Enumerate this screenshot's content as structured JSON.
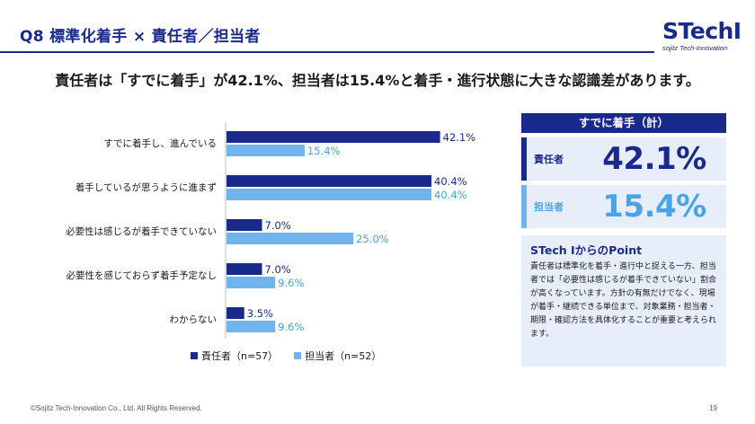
{
  "header": {
    "title": "Q8 標準化着手 × 責任者／担当者",
    "logo_main": "STechI",
    "logo_sub": "sojitz Tech-Innovation"
  },
  "headline": "責任者は「すでに着手」が42.1%、担当者は15.4%と着手・進行状態に大きな認識差があります。",
  "colors": {
    "primary": "#1a2a8c",
    "secondary": "#6fb4ec",
    "panel": "#e7eefa"
  },
  "chart_data": {
    "type": "bar",
    "orientation": "horizontal",
    "categories": [
      "すでに着手し、進んでいる",
      "着手しているが思うように進まず",
      "必要性は感じるが着手できていない",
      "必要性を感じておらず着手予定なし",
      "わからない"
    ],
    "series": [
      {
        "name": "責任者（n=57）",
        "values": [
          42.1,
          40.4,
          7.0,
          7.0,
          3.5
        ],
        "labels": [
          "42.1%",
          "40.4%",
          "7.0%",
          "7.0%",
          "3.5%"
        ]
      },
      {
        "name": "担当者（n=52）",
        "values": [
          15.4,
          40.4,
          25.0,
          9.6,
          9.6
        ],
        "labels": [
          "15.4%",
          "40.4%",
          "25.0%",
          "9.6%",
          "9.6%"
        ]
      }
    ],
    "xlim": [
      0,
      45
    ],
    "legend_position": "bottom",
    "grid": false
  },
  "legend": {
    "a": "責任者（n=57）",
    "b": "担当者（n=52）"
  },
  "kpi": {
    "title": "すでに着手（計）",
    "rows": [
      {
        "label": "責任者",
        "value": "42.1%"
      },
      {
        "label": "担当者",
        "value": "15.4%"
      }
    ]
  },
  "point": {
    "title": "STech IからのPoint",
    "body": "責任者は標準化を着手・進行中と捉える一方、担当者では「必要性は感じるが着手できていない」割合が高くなっています。方針の有無だけでなく、現場が着手・継続できる単位まで、対象業務・担当者・期限・確認方法を具体化することが重要と考えられます。"
  },
  "footer": {
    "copyright": "©Sojitz Tech-Innovation Co., Ltd. All Rights Reserved.",
    "page": "19"
  }
}
